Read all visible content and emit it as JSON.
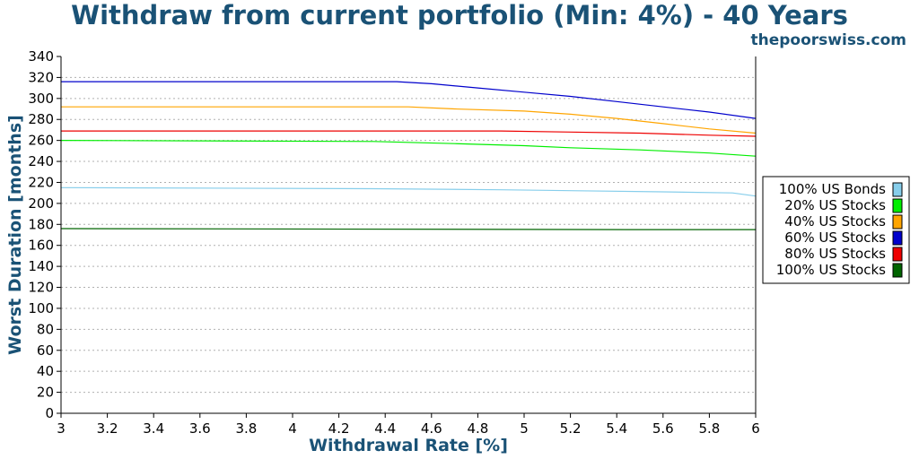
{
  "title": "Withdraw from current portfolio (Min: 4%) - 40 Years",
  "site": "thepoorswiss.com",
  "chart_data": {
    "type": "line",
    "title": "Withdraw from current portfolio (Min: 4%) - 40 Years",
    "xlabel": "Withdrawal Rate [%]",
    "ylabel": "Worst Duration [months]",
    "xlim": [
      3,
      6
    ],
    "ylim": [
      0,
      340
    ],
    "xticks": [
      "3",
      "3.2",
      "3.4",
      "3.6",
      "3.8",
      "4",
      "4.2",
      "4.4",
      "4.6",
      "4.8",
      "5",
      "5.2",
      "5.4",
      "5.6",
      "5.8",
      "6"
    ],
    "yticks": [
      "0",
      "20",
      "40",
      "60",
      "80",
      "100",
      "120",
      "140",
      "160",
      "180",
      "200",
      "220",
      "240",
      "260",
      "280",
      "300",
      "320",
      "340"
    ],
    "grid": true,
    "legend_position": "right",
    "series": [
      {
        "name": "100% US Bonds",
        "color": "#87ceeb",
        "x": [
          3,
          4.35,
          4.9,
          5.6,
          5.9,
          6
        ],
        "y": [
          215,
          214,
          213,
          211,
          210,
          207
        ]
      },
      {
        "name": "20% US Stocks",
        "color": "#00ee00",
        "x": [
          3,
          4.35,
          4.7,
          5.0,
          5.2,
          5.5,
          5.8,
          6
        ],
        "y": [
          260,
          259,
          257,
          255,
          253,
          251,
          248,
          245
        ]
      },
      {
        "name": "40% US Stocks",
        "color": "#ffa500",
        "x": [
          3,
          4.5,
          4.7,
          5.0,
          5.2,
          5.4,
          5.6,
          5.8,
          6
        ],
        "y": [
          292,
          292,
          290,
          288,
          285,
          281,
          276,
          271,
          267
        ]
      },
      {
        "name": "60% US Stocks",
        "color": "#0000cc",
        "x": [
          3,
          4.45,
          4.6,
          4.8,
          5.0,
          5.2,
          5.4,
          5.6,
          5.8,
          6
        ],
        "y": [
          316,
          316,
          314,
          310,
          306,
          302,
          297,
          292,
          287,
          281
        ]
      },
      {
        "name": "80% US Stocks",
        "color": "#ee0000",
        "x": [
          3,
          4.9,
          5.2,
          5.5,
          5.8,
          6
        ],
        "y": [
          269,
          269,
          268,
          267,
          265,
          264
        ]
      },
      {
        "name": "100% US Stocks",
        "color": "#006400",
        "x": [
          3,
          5.45,
          6
        ],
        "y": [
          176,
          175,
          175
        ]
      }
    ]
  }
}
